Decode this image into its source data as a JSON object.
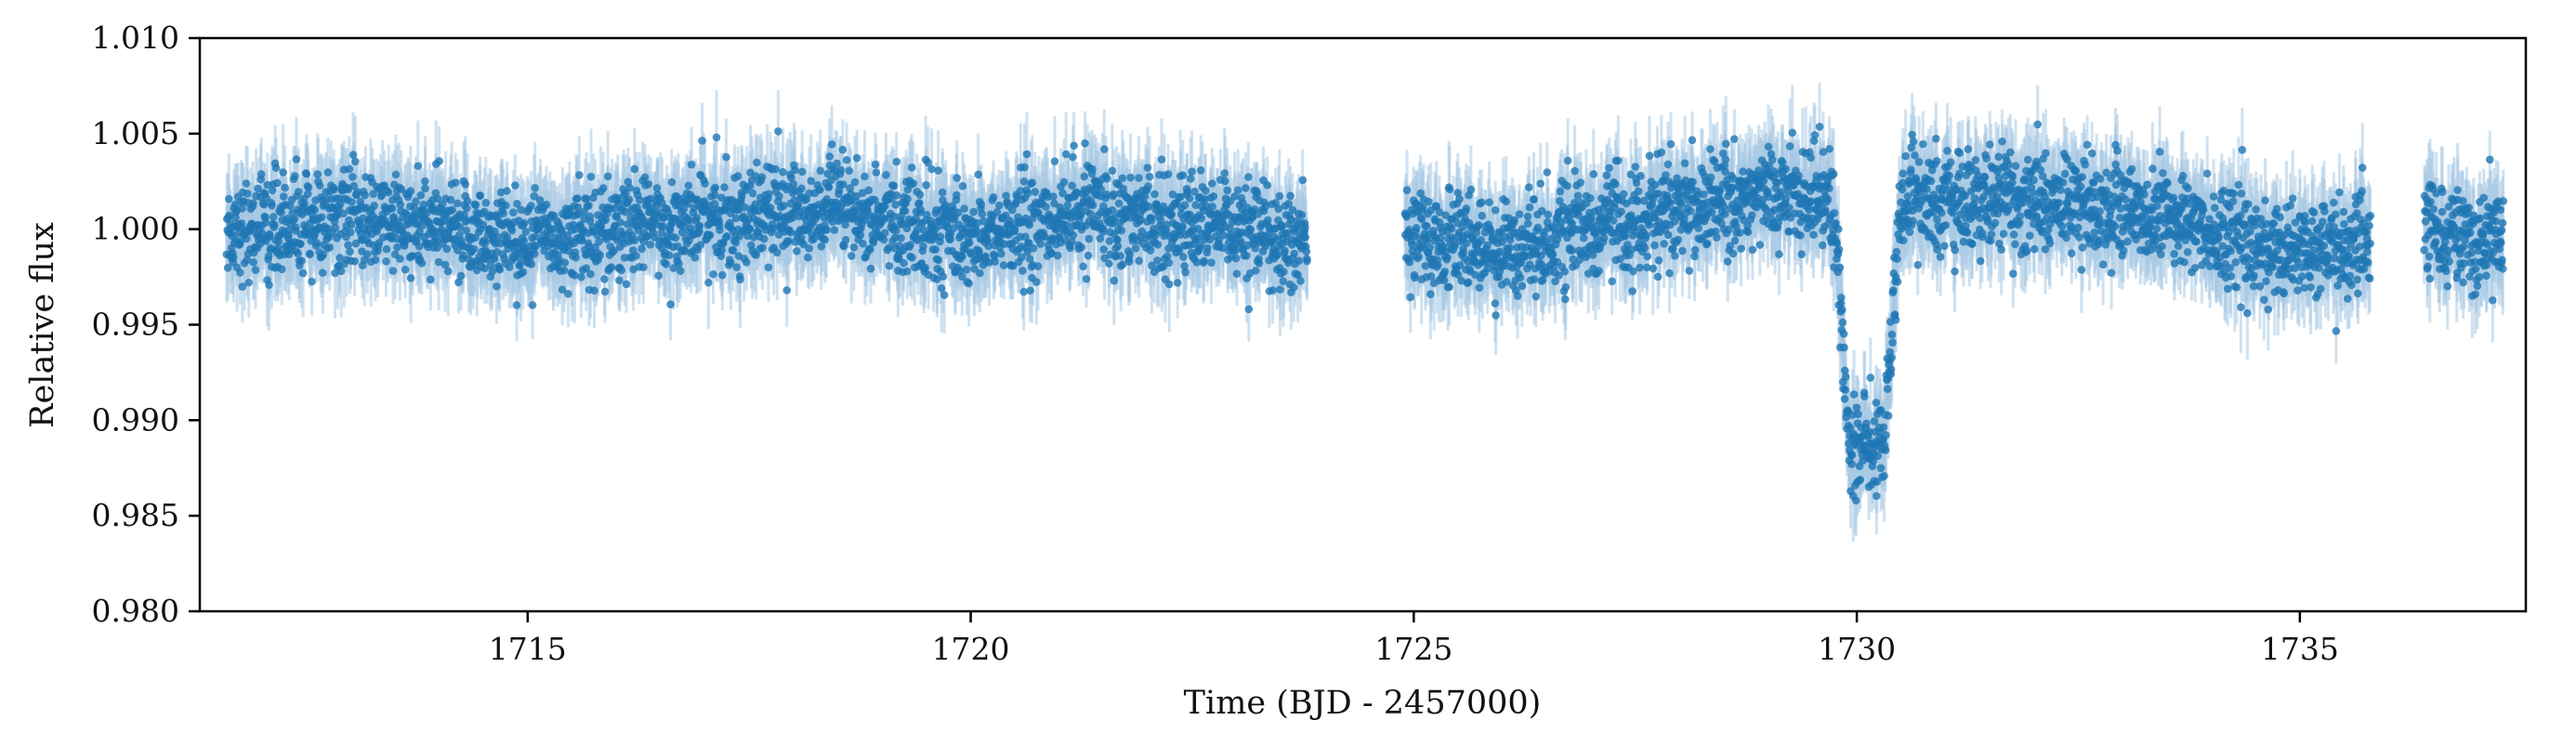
{
  "chart_data": {
    "type": "scatter",
    "title": "",
    "xlabel": "Time (BJD - 2457000)",
    "ylabel": "Relative flux",
    "xlim": [
      1711.3,
      1737.55
    ],
    "ylim": [
      0.98,
      1.01
    ],
    "x_ticks": [
      1715,
      1720,
      1725,
      1730,
      1735
    ],
    "x_tick_labels": [
      "1715",
      "1720",
      "1725",
      "1730",
      "1735"
    ],
    "y_ticks": [
      0.98,
      0.985,
      0.99,
      0.995,
      1.0,
      1.005,
      1.01
    ],
    "y_tick_labels": [
      "0.980",
      "0.985",
      "0.990",
      "0.995",
      "1.000",
      "1.005",
      "1.010"
    ],
    "grid": false,
    "legend": "none",
    "series": [
      {
        "marker_color": "#1f77b4",
        "errorbar_color": "#a6c8e3",
        "segments": [
          {
            "x_start": 1711.6,
            "x_end": 1723.8
          },
          {
            "x_start": 1724.9,
            "x_end": 1735.8
          },
          {
            "x_start": 1736.4,
            "x_end": 1737.3
          }
        ],
        "baseline_profile": {
          "x": [
            1711.6,
            1713.0,
            1715.0,
            1717.0,
            1718.5,
            1720.0,
            1721.5,
            1723.0,
            1723.8,
            1724.9,
            1726.0,
            1727.5,
            1729.0,
            1729.5,
            1730.7,
            1732.0,
            1733.5,
            1734.5,
            1735.8,
            1736.4,
            1737.3
          ],
          "y": [
            1.0,
            1.0005,
            0.9995,
            1.0005,
            1.001,
            0.9995,
            1.001,
            0.9998,
            0.9995,
            0.9995,
            0.999,
            1.0005,
            1.002,
            1.0018,
            1.0015,
            1.0015,
            1.0008,
            0.999,
            0.999,
            1.0,
            0.9995
          ]
        },
        "transit_dip": {
          "x_start": 1729.7,
          "x_min_start": 1729.95,
          "x_min_end": 1730.25,
          "x_end": 1730.55,
          "min_flux": 0.9885
        },
        "point_scatter": 0.0015,
        "errorbar_halfwidth": 0.0018,
        "n_points": 5200
      }
    ]
  }
}
